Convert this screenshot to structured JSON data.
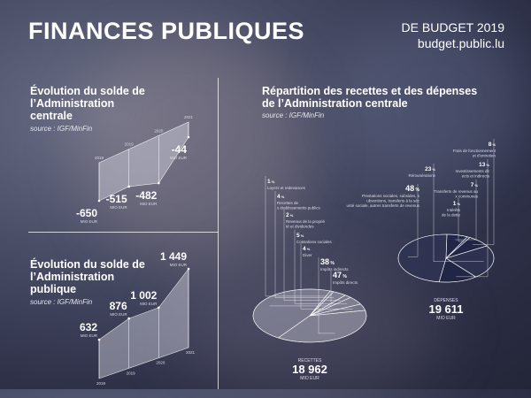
{
  "header": {
    "title": "FINANCES PUBLIQUES",
    "edition": "DE BUDGET 2019",
    "site": "budget.public.lu"
  },
  "section1": {
    "title": "Évolution du solde de l’Administration centrale",
    "source": "source : IGF/MinFin"
  },
  "section2": {
    "title": "Évolution du solde de l’Administration publique",
    "source": "source : IGF/MinFin"
  },
  "section3": {
    "title": "Répartition des recettes et des dépenses de l’Administration centrale",
    "source": "source : IGF/MinFin"
  },
  "chart_data": [
    {
      "type": "area",
      "title": "Évolution du solde de l’Administration centrale",
      "x": [
        "2018",
        "2019",
        "2020",
        "2021"
      ],
      "values": [
        -650,
        -515,
        -482,
        -44
      ],
      "unit": "MIO EUR"
    },
    {
      "type": "area",
      "title": "Évolution du solde de l’Administration publique",
      "x": [
        "2018",
        "2019",
        "2020",
        "2021"
      ],
      "values": [
        632,
        876,
        1002,
        1449
      ],
      "unit": "MIO EUR"
    },
    {
      "type": "pie",
      "title": "RECETTES",
      "total": "18 962",
      "unit": "MIO EUR",
      "slices": [
        {
          "label": "Loyers et redevances",
          "value": 1
        },
        {
          "label": "Recettes des établissements publics",
          "value": 4
        },
        {
          "label": "Revenus de la propriété et dividendes",
          "value": 2
        },
        {
          "label": "Cotisations sociales",
          "value": 5
        },
        {
          "label": "Divers",
          "value": 4
        },
        {
          "label": "Impôts indirects",
          "value": 38
        },
        {
          "label": "Impôts directs",
          "value": 47
        }
      ]
    },
    {
      "type": "pie",
      "title": "DÉPENSES",
      "total": "19 611",
      "unit": "MIO EUR",
      "slices": [
        {
          "label": "Frais de fonctionnement et d’entretien",
          "value": 8
        },
        {
          "label": "Rémunérations",
          "value": 23
        },
        {
          "label": "Investissements directs et indirects",
          "value": 13
        },
        {
          "label": "Prestations sociales, subsides, subventions, transferts à la sécurité sociale, autres transferts de revenus",
          "value": 48
        },
        {
          "label": "Transferts de revenus aux communes",
          "value": 7
        },
        {
          "label": "Intérêts de la dette",
          "value": 1
        }
      ]
    }
  ]
}
